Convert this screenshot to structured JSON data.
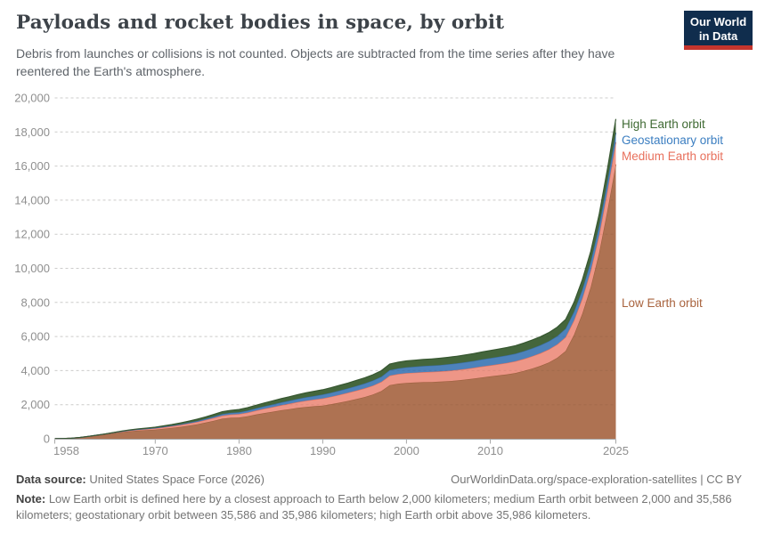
{
  "header": {
    "title": "Payloads and rocket bodies in space, by orbit",
    "subtitle": "Debris from launches or collisions is not counted. Objects are subtracted from the time series after they have reentered the Earth's atmosphere.",
    "logo": {
      "line1": "Our World",
      "line2": "in Data",
      "bg_color": "#102D4D",
      "accent_color": "#C5352D"
    }
  },
  "chart_data": {
    "type": "area",
    "stacked": true,
    "title": "Payloads and rocket bodies in space, by orbit",
    "xlabel": "",
    "ylabel": "",
    "x_range": [
      1958,
      2025
    ],
    "ylim": [
      0,
      20000
    ],
    "grid": true,
    "legend_position": "right-annotations",
    "y_ticks": [
      0,
      2000,
      4000,
      6000,
      8000,
      10000,
      12000,
      14000,
      16000,
      18000,
      20000
    ],
    "x_ticks": [
      {
        "year": 1958,
        "label": "1958",
        "anchor": "start"
      },
      {
        "year": 1970,
        "label": "1970",
        "anchor": "middle"
      },
      {
        "year": 1980,
        "label": "1980",
        "anchor": "middle"
      },
      {
        "year": 1990,
        "label": "1990",
        "anchor": "middle"
      },
      {
        "year": 2000,
        "label": "2000",
        "anchor": "middle"
      },
      {
        "year": 2010,
        "label": "2010",
        "anchor": "middle"
      },
      {
        "year": 2025,
        "label": "2025",
        "anchor": "middle"
      }
    ],
    "x": [
      1958,
      1959,
      1960,
      1961,
      1962,
      1963,
      1964,
      1965,
      1966,
      1967,
      1968,
      1969,
      1970,
      1971,
      1972,
      1973,
      1974,
      1975,
      1976,
      1977,
      1978,
      1979,
      1980,
      1981,
      1982,
      1983,
      1984,
      1985,
      1986,
      1987,
      1988,
      1989,
      1990,
      1991,
      1992,
      1993,
      1994,
      1995,
      1996,
      1997,
      1998,
      1999,
      2000,
      2001,
      2002,
      2003,
      2004,
      2005,
      2006,
      2007,
      2008,
      2009,
      2010,
      2011,
      2012,
      2013,
      2014,
      2015,
      2016,
      2017,
      2018,
      2019,
      2020,
      2021,
      2022,
      2023,
      2024,
      2025
    ],
    "series": [
      {
        "name": "Low Earth orbit",
        "fill": "#AE7252",
        "line": "#9C5F3E",
        "label_color": "#A9643F",
        "label_y": 345,
        "values": [
          8,
          15,
          30,
          70,
          130,
          190,
          250,
          320,
          390,
          440,
          480,
          510,
          540,
          590,
          640,
          700,
          770,
          850,
          950,
          1060,
          1180,
          1230,
          1250,
          1320,
          1420,
          1510,
          1590,
          1670,
          1740,
          1810,
          1870,
          1910,
          1950,
          2030,
          2120,
          2220,
          2330,
          2450,
          2600,
          2800,
          3150,
          3230,
          3280,
          3300,
          3320,
          3330,
          3350,
          3380,
          3420,
          3470,
          3530,
          3600,
          3660,
          3720,
          3780,
          3860,
          3980,
          4120,
          4280,
          4480,
          4750,
          5150,
          6100,
          7350,
          8900,
          10900,
          13400,
          16100
        ]
      },
      {
        "name": "Medium Earth orbit",
        "fill": "#EE9687",
        "line": "#E0705C",
        "label_color": "#E8705C",
        "label_y": 180,
        "values": [
          0,
          0,
          2,
          5,
          10,
          16,
          24,
          33,
          42,
          50,
          58,
          66,
          75,
          86,
          98,
          110,
          123,
          136,
          150,
          165,
          180,
          190,
          200,
          215,
          232,
          250,
          270,
          292,
          315,
          340,
          366,
          392,
          420,
          440,
          460,
          478,
          495,
          510,
          525,
          540,
          555,
          565,
          575,
          582,
          590,
          596,
          602,
          608,
          615,
          622,
          630,
          640,
          650,
          662,
          675,
          690,
          706,
          724,
          744,
          766,
          790,
          816,
          850,
          900,
          970,
          1060,
          1170,
          1300
        ]
      },
      {
        "name": "Geostationary orbit",
        "fill": "#4D82BB",
        "line": "#3B6FA8",
        "label_color": "#3B7EC1",
        "label_y": 162,
        "values": [
          0,
          0,
          0,
          0,
          1,
          1,
          2,
          4,
          7,
          10,
          14,
          18,
          23,
          29,
          36,
          43,
          51,
          60,
          70,
          80,
          90,
          98,
          106,
          116,
          127,
          139,
          151,
          163,
          175,
          187,
          199,
          211,
          223,
          235,
          247,
          259,
          271,
          283,
          295,
          307,
          319,
          330,
          340,
          349,
          357,
          365,
          373,
          381,
          389,
          397,
          405,
          413,
          420,
          428,
          436,
          444,
          452,
          460,
          468,
          476,
          484,
          492,
          500,
          510,
          521,
          533,
          546,
          560
        ]
      },
      {
        "name": "High Earth orbit",
        "fill": "#44663C",
        "line": "#375731",
        "label_color": "#3F6A33",
        "label_y": 144,
        "values": [
          0,
          0,
          0,
          1,
          1,
          2,
          5,
          9,
          14,
          20,
          27,
          34,
          42,
          52,
          63,
          75,
          88,
          101,
          114,
          127,
          140,
          150,
          160,
          172,
          185,
          198,
          211,
          224,
          237,
          250,
          262,
          273,
          284,
          294,
          304,
          313,
          322,
          331,
          340,
          349,
          358,
          366,
          374,
          381,
          388,
          395,
          402,
          409,
          416,
          423,
          430,
          437,
          444,
          452,
          460,
          468,
          477,
          487,
          498,
          510,
          523,
          537,
          552,
          570,
          600,
          650,
          720,
          800
        ]
      }
    ]
  },
  "footer": {
    "source_label": "Data source:",
    "source_value": " United States Space Force (2026)",
    "link": "OurWorldinData.org/space-exploration-satellites | CC BY",
    "note_label": "Note:",
    "note_value": " Low Earth orbit is defined here by a closest approach to Earth below 2,000 kilometers; medium Earth orbit between 2,000 and 35,586 kilometers; geostationary orbit between 35,586 and 35,986 kilometers; high Earth orbit above 35,986 kilometers."
  }
}
